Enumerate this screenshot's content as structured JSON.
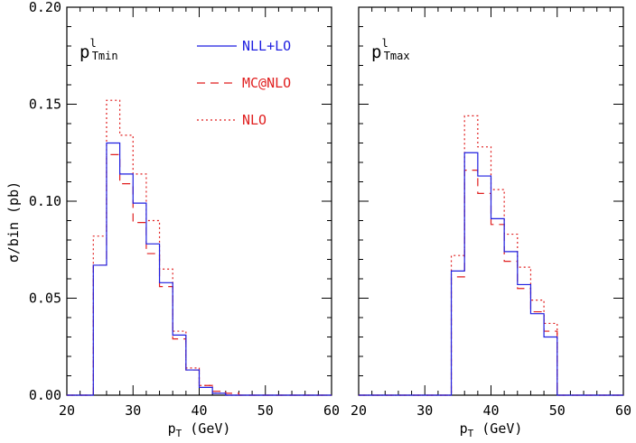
{
  "chart_data": {
    "type": "line",
    "step": true,
    "ylabel": "σ/bin (pb)",
    "xlabel_main": "p",
    "xlabel_sub": "T",
    "xlabel_unit": " (GeV)",
    "xlim": [
      20,
      60
    ],
    "ylim": [
      0,
      0.2
    ],
    "xticks": [
      "20",
      "30",
      "40",
      "50",
      "60"
    ],
    "yticks": [
      "0.00",
      "0.05",
      "0.10",
      "0.15",
      "0.20"
    ],
    "bins": [
      20,
      22,
      24,
      26,
      28,
      30,
      32,
      34,
      36,
      38,
      40,
      42,
      44,
      46,
      48,
      50,
      52,
      54,
      56,
      58,
      60
    ],
    "legend": {
      "position": "top",
      "entries": [
        {
          "label": "NLL+LO",
          "color": "#1f1fe0",
          "dash": "solid"
        },
        {
          "label": "MC@NLO",
          "color": "#e01f1f",
          "dash": "dashed"
        },
        {
          "label": "NLO",
          "color": "#e01f1f",
          "dash": "dotted"
        }
      ]
    },
    "panels": [
      {
        "label_main": "p",
        "label_sup": "l",
        "label_sub": "Tmin",
        "series": [
          {
            "name": "NLL+LO",
            "values": [
              0,
              0,
              0.067,
              0.13,
              0.114,
              0.099,
              0.078,
              0.058,
              0.031,
              0.013,
              0.004,
              0.001,
              0,
              0,
              0,
              0,
              0,
              0,
              0,
              0
            ]
          },
          {
            "name": "MC@NLO",
            "values": [
              0,
              0,
              0.067,
              0.124,
              0.109,
              0.089,
              0.073,
              0.056,
              0.029,
              0.013,
              0.005,
              0.002,
              0.001,
              0,
              0,
              0,
              0,
              0,
              0,
              0
            ]
          },
          {
            "name": "NLO",
            "values": [
              0,
              0,
              0.082,
              0.152,
              0.134,
              0.114,
              0.09,
              0.065,
              0.033,
              0.014,
              0.005,
              0.001,
              0,
              0,
              0,
              0,
              0,
              0,
              0,
              0
            ]
          }
        ]
      },
      {
        "label_main": "p",
        "label_sup": "l",
        "label_sub": "Tmax",
        "series": [
          {
            "name": "NLL+LO",
            "values": [
              0,
              0,
              0,
              0,
              0,
              0,
              0,
              0.064,
              0.125,
              0.113,
              0.091,
              0.074,
              0.057,
              0.042,
              0.03,
              0,
              0,
              0,
              0,
              0
            ]
          },
          {
            "name": "MC@NLO",
            "values": [
              0,
              0,
              0,
              0,
              0,
              0,
              0,
              0.061,
              0.116,
              0.104,
              0.088,
              0.069,
              0.055,
              0.043,
              0.033,
              0,
              0,
              0,
              0,
              0
            ]
          },
          {
            "name": "NLO",
            "values": [
              0,
              0,
              0,
              0,
              0,
              0,
              0,
              0.072,
              0.144,
              0.128,
              0.106,
              0.083,
              0.066,
              0.049,
              0.037,
              0,
              0,
              0,
              0,
              0
            ]
          }
        ]
      }
    ]
  }
}
